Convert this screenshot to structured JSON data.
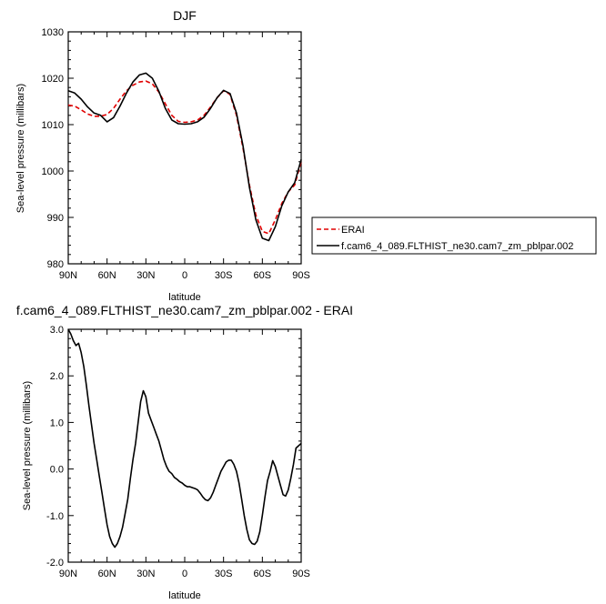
{
  "chart_data": [
    {
      "type": "line",
      "title": "DJF",
      "xlabel": "latitude",
      "ylabel": "Sea-level pressure (millibars)",
      "xlim": [
        90,
        -90
      ],
      "ylim": [
        980,
        1030
      ],
      "x_ticks": [
        90,
        60,
        30,
        0,
        -30,
        -60,
        -90
      ],
      "x_tick_labels": [
        "90N",
        "60N",
        "30N",
        "0",
        "30S",
        "60S",
        "90S"
      ],
      "y_ticks": [
        980,
        990,
        1000,
        1010,
        1020,
        1030
      ],
      "y_tick_labels": [
        "980",
        "990",
        "1000",
        "1010",
        "1020",
        "1030"
      ],
      "grid": false,
      "legend_position": "outside-right",
      "series": [
        {
          "name": "ERAI",
          "color": "#e00000",
          "dash": "dashed",
          "x": [
            90,
            85,
            80,
            75,
            70,
            65,
            60,
            55,
            50,
            45,
            40,
            35,
            30,
            25,
            20,
            15,
            10,
            5,
            0,
            -5,
            -10,
            -15,
            -20,
            -25,
            -30,
            -35,
            -40,
            -45,
            -50,
            -55,
            -60,
            -65,
            -70,
            -75,
            -80,
            -85,
            -90
          ],
          "y": [
            1014.2,
            1014.0,
            1013.2,
            1012.3,
            1011.8,
            1011.8,
            1012.2,
            1013.5,
            1015.5,
            1017.3,
            1018.5,
            1019.2,
            1019.4,
            1018.8,
            1017.0,
            1014.5,
            1012.0,
            1010.7,
            1010.5,
            1010.6,
            1011.0,
            1012.0,
            1013.8,
            1015.8,
            1017.3,
            1016.5,
            1012.0,
            1005.0,
            997.0,
            990.5,
            987.0,
            986.5,
            989.5,
            993.0,
            995.5,
            997.0,
            1002.0
          ]
        },
        {
          "name": "f.cam6_4_089.FLTHIST_ne30.cam7_zm_pblpar.002",
          "color": "#000000",
          "dash": "solid",
          "x": [
            90,
            85,
            80,
            75,
            70,
            65,
            60,
            55,
            50,
            45,
            40,
            35,
            30,
            25,
            20,
            15,
            10,
            5,
            0,
            -5,
            -10,
            -15,
            -20,
            -25,
            -30,
            -35,
            -40,
            -45,
            -50,
            -55,
            -60,
            -65,
            -70,
            -75,
            -80,
            -85,
            -90
          ],
          "y": [
            1017.3,
            1016.8,
            1015.5,
            1013.8,
            1012.5,
            1012.0,
            1010.6,
            1011.5,
            1014.0,
            1016.8,
            1019.2,
            1020.7,
            1021.1,
            1020.0,
            1017.2,
            1013.5,
            1011.0,
            1010.2,
            1010.1,
            1010.2,
            1010.6,
            1011.6,
            1013.5,
            1015.8,
            1017.4,
            1016.7,
            1012.5,
            1005.5,
            996.5,
            989.5,
            985.5,
            985.0,
            988.0,
            992.5,
            995.5,
            997.5,
            1002.5
          ]
        }
      ]
    },
    {
      "type": "line",
      "title": "f.cam6_4_089.FLTHIST_ne30.cam7_zm_pblpar.002 - ERAI",
      "xlabel": "latitude",
      "ylabel": "Sea-level pressure (millibars)",
      "xlim": [
        90,
        -90
      ],
      "ylim": [
        -2.0,
        3.0
      ],
      "x_ticks": [
        90,
        60,
        30,
        0,
        -30,
        -60,
        -90
      ],
      "x_tick_labels": [
        "90N",
        "60N",
        "30N",
        "0",
        "30S",
        "60S",
        "90S"
      ],
      "y_ticks": [
        -2.0,
        -1.0,
        0.0,
        1.0,
        2.0,
        3.0
      ],
      "y_tick_labels": [
        "-2.0",
        "-1.0",
        "0.0",
        "1.0",
        "2.0",
        "3.0"
      ],
      "grid": false,
      "series": [
        {
          "color": "#000000",
          "dash": "solid",
          "x": [
            90,
            88,
            86,
            84,
            82,
            80,
            78,
            76,
            74,
            72,
            70,
            68,
            66,
            64,
            62,
            60,
            58,
            56,
            54,
            52,
            50,
            48,
            46,
            44,
            42,
            40,
            38,
            36,
            34,
            32,
            30,
            28,
            26,
            24,
            22,
            20,
            18,
            16,
            14,
            12,
            10,
            8,
            6,
            4,
            2,
            0,
            -2,
            -4,
            -6,
            -8,
            -10,
            -12,
            -14,
            -16,
            -18,
            -20,
            -22,
            -24,
            -26,
            -28,
            -30,
            -32,
            -34,
            -36,
            -38,
            -40,
            -42,
            -44,
            -46,
            -48,
            -50,
            -52,
            -54,
            -56,
            -58,
            -60,
            -62,
            -64,
            -66,
            -68,
            -70,
            -72,
            -74,
            -76,
            -78,
            -80,
            -82,
            -84,
            -86,
            -88,
            -90
          ],
          "y": [
            3.0,
            2.9,
            2.75,
            2.65,
            2.7,
            2.5,
            2.2,
            1.8,
            1.35,
            0.95,
            0.55,
            0.2,
            -0.15,
            -0.5,
            -0.85,
            -1.2,
            -1.45,
            -1.6,
            -1.68,
            -1.6,
            -1.45,
            -1.25,
            -0.95,
            -0.65,
            -0.2,
            0.2,
            0.55,
            1.0,
            1.45,
            1.68,
            1.55,
            1.2,
            1.05,
            0.9,
            0.75,
            0.6,
            0.4,
            0.2,
            0.05,
            -0.05,
            -0.1,
            -0.18,
            -0.22,
            -0.27,
            -0.3,
            -0.35,
            -0.38,
            -0.38,
            -0.4,
            -0.42,
            -0.45,
            -0.52,
            -0.6,
            -0.66,
            -0.68,
            -0.62,
            -0.5,
            -0.35,
            -0.2,
            -0.05,
            0.05,
            0.15,
            0.19,
            0.19,
            0.1,
            -0.05,
            -0.3,
            -0.65,
            -1.0,
            -1.3,
            -1.52,
            -1.6,
            -1.62,
            -1.55,
            -1.35,
            -1.0,
            -0.6,
            -0.25,
            -0.05,
            0.18,
            0.05,
            -0.15,
            -0.35,
            -0.55,
            -0.58,
            -0.45,
            -0.2,
            0.1,
            0.45,
            0.5,
            0.55
          ]
        }
      ]
    }
  ]
}
